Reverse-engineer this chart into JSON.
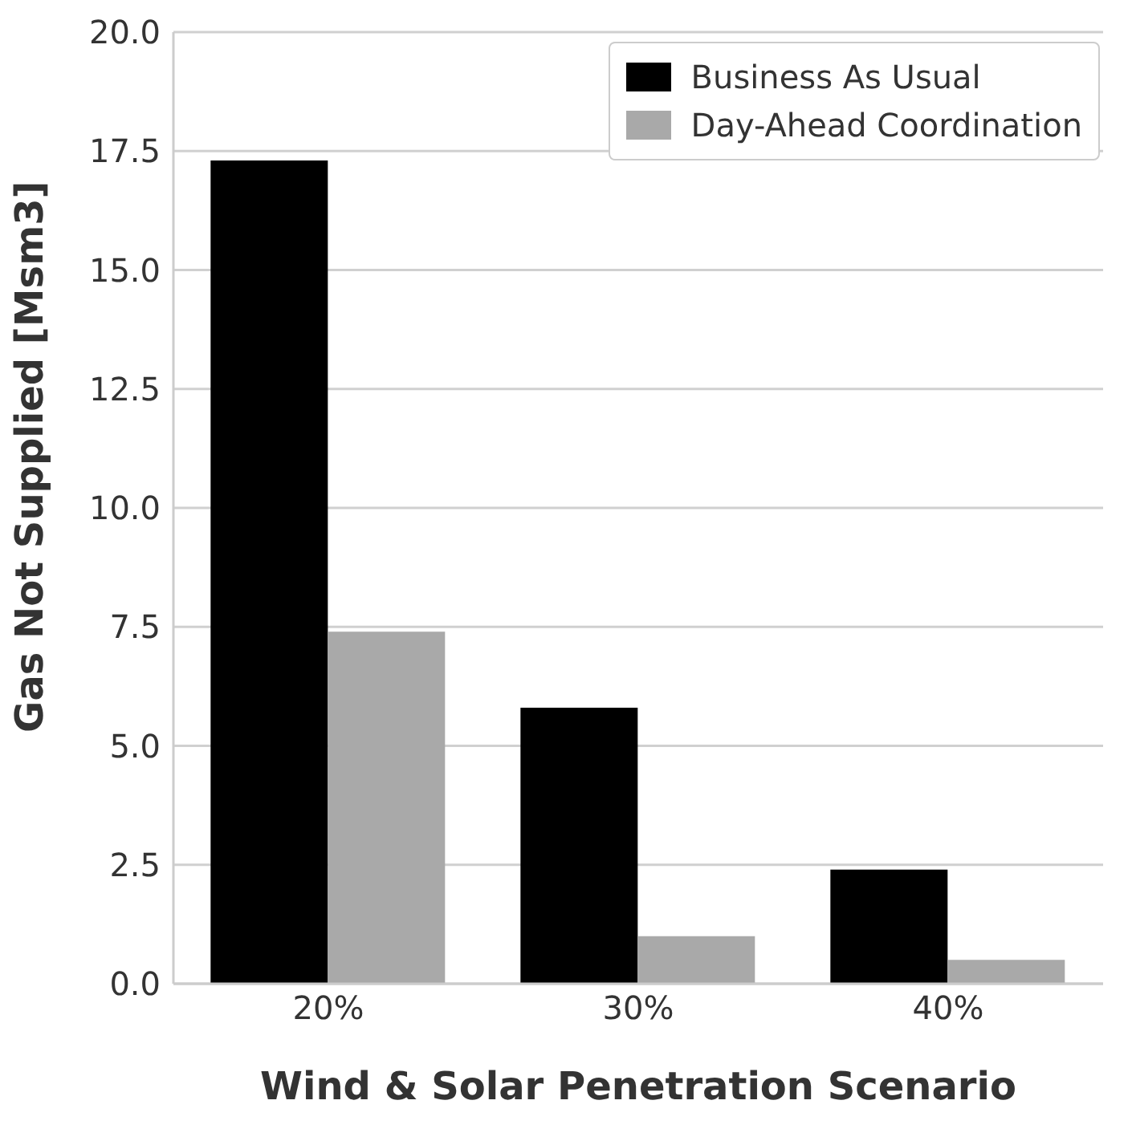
{
  "chart_data": {
    "type": "bar",
    "xlabel": "Wind & Solar Penetration Scenario",
    "ylabel": "Gas Not Supplied [Msm3]",
    "categories": [
      "20%",
      "30%",
      "40%"
    ],
    "series": [
      {
        "name": "Business As Usual",
        "color": "#000000",
        "values": [
          17.3,
          5.8,
          2.4
        ]
      },
      {
        "name": "Day-Ahead Coordination",
        "color": "#a9a9a9",
        "values": [
          7.4,
          1.0,
          0.5
        ]
      }
    ],
    "ylim": [
      0,
      20
    ],
    "yticks": [
      {
        "value": 0,
        "label": "0.0"
      },
      {
        "value": 2.5,
        "label": "2.5"
      },
      {
        "value": 5,
        "label": "5.0"
      },
      {
        "value": 7.5,
        "label": "7.5"
      },
      {
        "value": 10,
        "label": "10.0"
      },
      {
        "value": 12.5,
        "label": "12.5"
      },
      {
        "value": 15,
        "label": "15.0"
      },
      {
        "value": 17.5,
        "label": "17.5"
      },
      {
        "value": 20,
        "label": "20.0"
      }
    ],
    "grid": "y",
    "legend": "top right"
  }
}
